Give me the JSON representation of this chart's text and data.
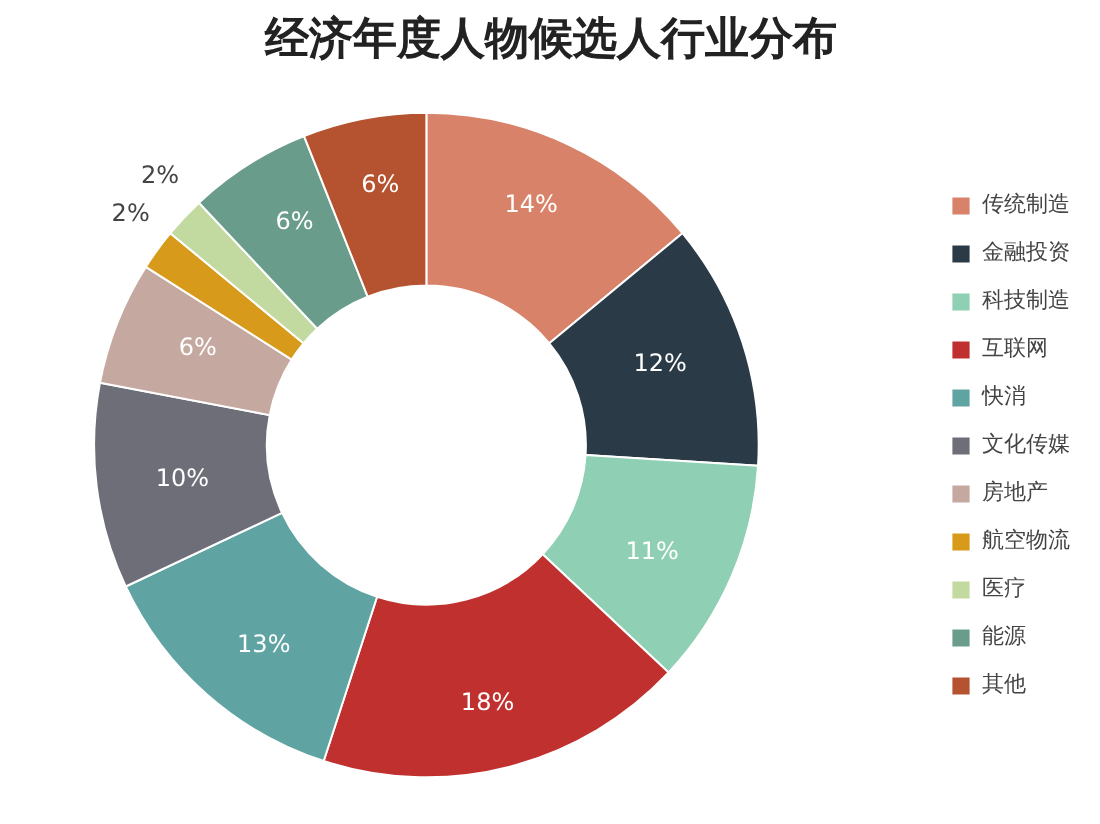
{
  "chart_data": {
    "type": "donut",
    "title": "经济年度人物候选人行业分布",
    "categories": [
      "传统制造",
      "金融投资",
      "科技制造",
      "互联网",
      "快消",
      "文化传媒",
      "房地产",
      "航空物流",
      "医疗",
      "能源",
      "其他"
    ],
    "values": [
      14,
      12,
      11,
      18,
      13,
      10,
      6,
      2,
      2,
      6,
      6
    ],
    "colors": [
      "#d9826a",
      "#2b3a47",
      "#8fcfb3",
      "#c0302f",
      "#5fa3a3",
      "#6d6e78",
      "#c5a9a0",
      "#d89a1a",
      "#c2d9a0",
      "#6a9c8c",
      "#b5522f"
    ],
    "value_labels": [
      "14%",
      "12%",
      "11%",
      "18%",
      "13%",
      "10%",
      "6%",
      "2%",
      "2%",
      "6%",
      "6%"
    ],
    "legend": "right"
  }
}
